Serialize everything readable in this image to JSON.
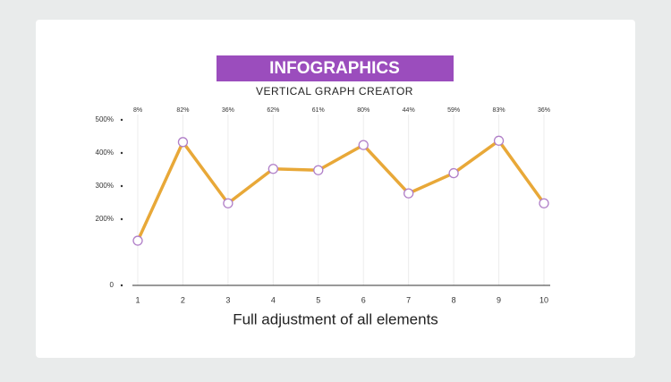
{
  "chart_data": {
    "type": "line",
    "title": "INFOGRAPHICS",
    "subtitle": "VERTICAL GRAPH CREATOR",
    "caption": "Full adjustment of all elements",
    "categories": [
      "1",
      "2",
      "3",
      "4",
      "5",
      "6",
      "7",
      "8",
      "9",
      "10"
    ],
    "annotations": [
      "8%",
      "82%",
      "36%",
      "62%",
      "61%",
      "80%",
      "44%",
      "59%",
      "83%",
      "36%"
    ],
    "values": [
      135,
      433,
      248,
      352,
      348,
      424,
      278,
      339,
      437,
      248
    ],
    "color": "#e8a838",
    "marker_color": "#b07fc8",
    "ylim": [
      0,
      500
    ],
    "yticks": [
      0,
      {
        "value": 200,
        "label": "200%"
      },
      {
        "value": 300,
        "label": "300%"
      },
      {
        "value": 400,
        "label": "400%"
      },
      {
        "value": 500,
        "label": "500%"
      }
    ],
    "grid": true
  }
}
